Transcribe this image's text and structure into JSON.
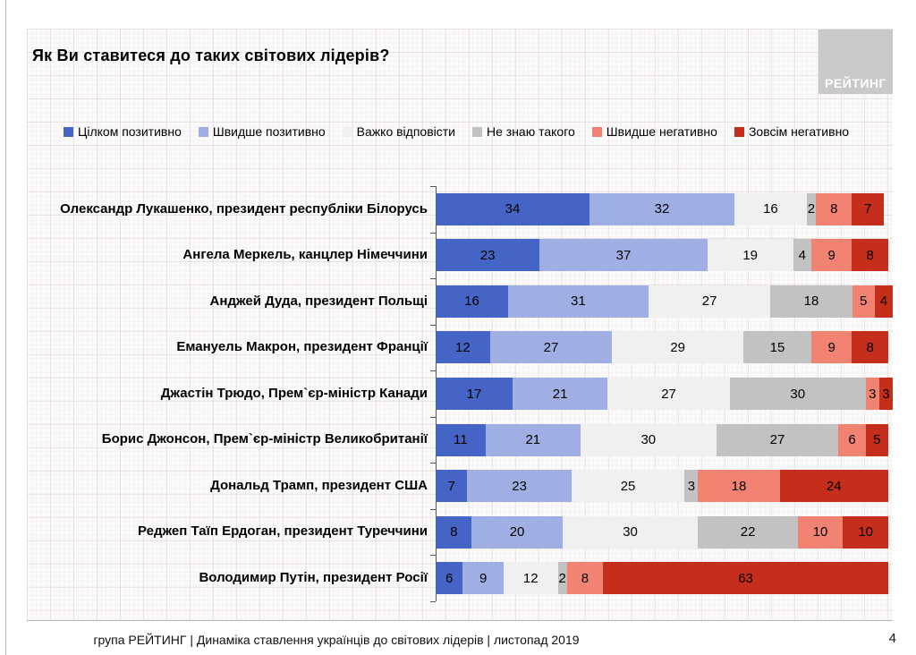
{
  "title": "Як Ви ставитеся до таких світових лідерів?",
  "logo_text": "РЕЙТИНГ",
  "footer": {
    "text": "група РЕЙТИНГ | Динаміка ставлення українців до світових лідерів  | листопад 2019",
    "page": "4"
  },
  "colors": {
    "very_positive": "#4565c6",
    "rather_positive": "#9fafe3",
    "hard_to_say": "#f0f0f0",
    "dont_know": "#c2c2c2",
    "rather_negative": "#f28271",
    "very_negative": "#c52e1a"
  },
  "chart_data": {
    "type": "bar",
    "stacked": true,
    "orientation": "horizontal",
    "xlim": [
      0,
      100
    ],
    "legend_position": "top",
    "grid": true,
    "categories": [
      "Олександр Лукашенко, президент республіки Білорусь",
      "Ангела Меркель, канцлер Німеччини",
      "Анджей Дуда, президент Польщі",
      "Емануель Макрон, президент Франції",
      "Джастін Трюдо, Прем`єр-міністр Канади",
      "Борис Джонсон, Прем`єр-міністр Великобританії",
      "Дональд Трамп, президент США",
      "Реджеп Таїп Ердоган, президент Туреччини",
      "Володимир Путін, президент Росії"
    ],
    "series": [
      {
        "name": "Цілком позитивно",
        "color": "#4565c6",
        "values": [
          34,
          23,
          16,
          12,
          17,
          11,
          7,
          8,
          6
        ]
      },
      {
        "name": "Швидше позитивно",
        "color": "#9fafe3",
        "values": [
          32,
          37,
          31,
          27,
          21,
          21,
          23,
          20,
          9
        ]
      },
      {
        "name": "Важко відповісти",
        "color": "#f0f0f0",
        "values": [
          16,
          19,
          27,
          29,
          27,
          30,
          25,
          30,
          12
        ]
      },
      {
        "name": "Не знаю такого",
        "color": "#c2c2c2",
        "values": [
          2,
          4,
          18,
          15,
          30,
          27,
          3,
          22,
          2
        ]
      },
      {
        "name": "Швидше негативно",
        "color": "#f28271",
        "values": [
          8,
          9,
          5,
          9,
          3,
          6,
          18,
          10,
          8
        ]
      },
      {
        "name": "Зовсім негативно",
        "color": "#c52e1a",
        "values": [
          7,
          8,
          4,
          8,
          3,
          5,
          24,
          10,
          63
        ]
      }
    ]
  }
}
